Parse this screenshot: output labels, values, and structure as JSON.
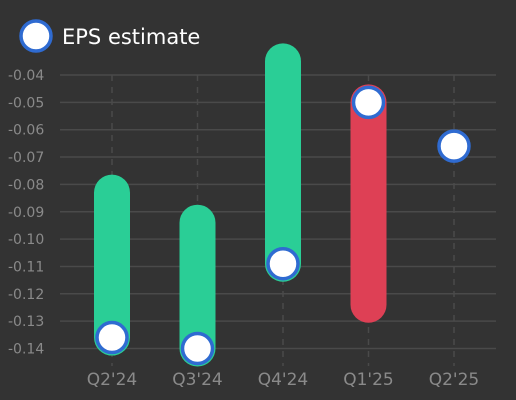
{
  "chart_data": {
    "type": "range-bar",
    "legend": {
      "label": "EPS estimate",
      "placement": "top-left"
    },
    "categories": [
      "Q2'24",
      "Q3'24",
      "Q4'24",
      "Q1'25",
      "Q2'25"
    ],
    "eps_estimate": [
      -0.136,
      -0.14,
      -0.109,
      -0.05,
      -0.066
    ],
    "eps_actual": [
      -0.083,
      -0.094,
      -0.035,
      -0.124,
      null
    ],
    "bar_status": [
      "beat",
      "beat",
      "beat",
      "miss",
      null
    ],
    "y_ticks": [
      "-0.04",
      "-0.05",
      "-0.06",
      "-0.07",
      "-0.08",
      "-0.09",
      "-0.10",
      "-0.11",
      "-0.12",
      "-0.13",
      "-0.14"
    ],
    "y_tick_values": [
      -0.04,
      -0.05,
      -0.06,
      -0.07,
      -0.08,
      -0.09,
      -0.1,
      -0.11,
      -0.12,
      -0.13,
      -0.14
    ],
    "ylim": [
      -0.145,
      -0.035
    ],
    "grid": true,
    "colors": {
      "background": "#333333",
      "beat": "#2ace96",
      "miss": "#de4055",
      "marker_fill": "#ffffff",
      "marker_stroke": "#2f6bd1",
      "grid": "#4a4a4a",
      "tick_text": "#8a8a8a"
    }
  }
}
